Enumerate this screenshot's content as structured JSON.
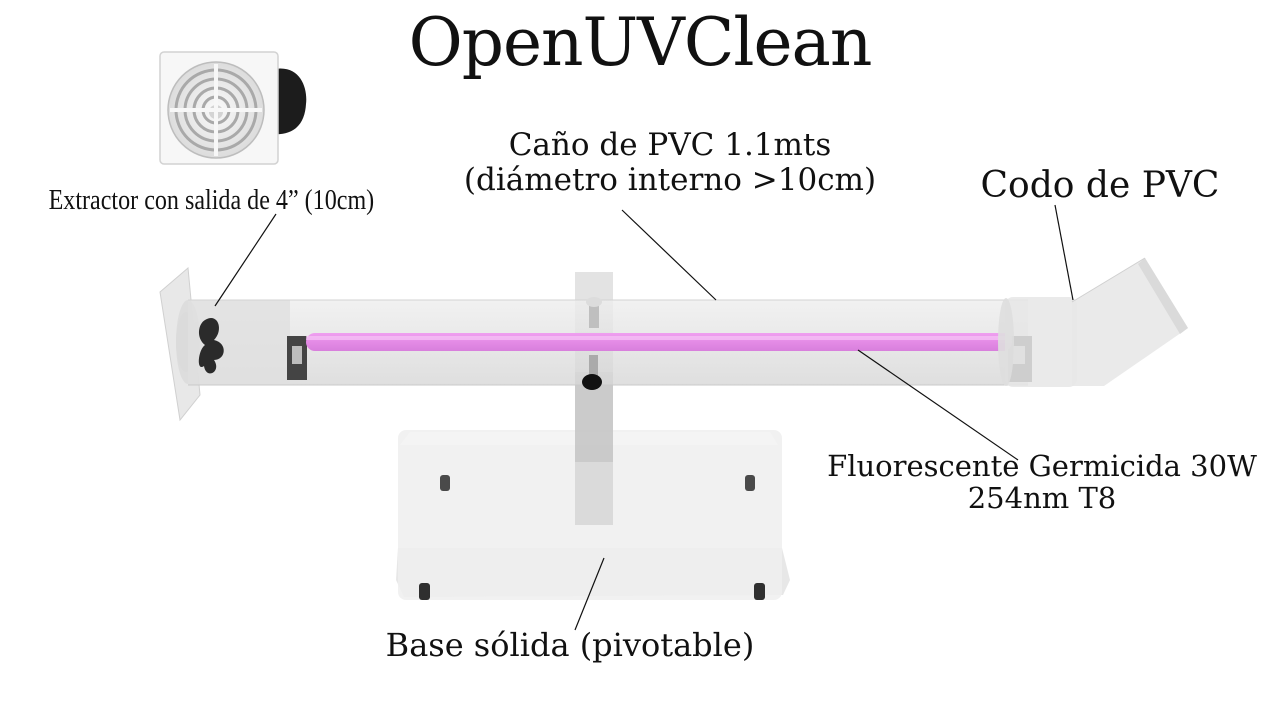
{
  "title": "OpenUVClean",
  "labels": {
    "extractor": "Extractor con salida de 4” (10cm)",
    "pipe_line1": "Caño de PVC 1.1mts",
    "pipe_line2": "(diámetro interno >10cm)",
    "elbow": "Codo de PVC",
    "lamp_line1": "Fluorescente Germicida 30W",
    "lamp_line2": "254nm T8",
    "base": "Base sólida (pivotable)"
  },
  "colors": {
    "lamp": "#e28be6",
    "pvc": "#d9d9d9",
    "base": "#e6e6e6",
    "background": "#ffffff"
  },
  "icons": [
    "exhaust-fan-icon",
    "lamp-holder-icon",
    "rubber-foot-icon",
    "pivot-bolt-icon"
  ]
}
